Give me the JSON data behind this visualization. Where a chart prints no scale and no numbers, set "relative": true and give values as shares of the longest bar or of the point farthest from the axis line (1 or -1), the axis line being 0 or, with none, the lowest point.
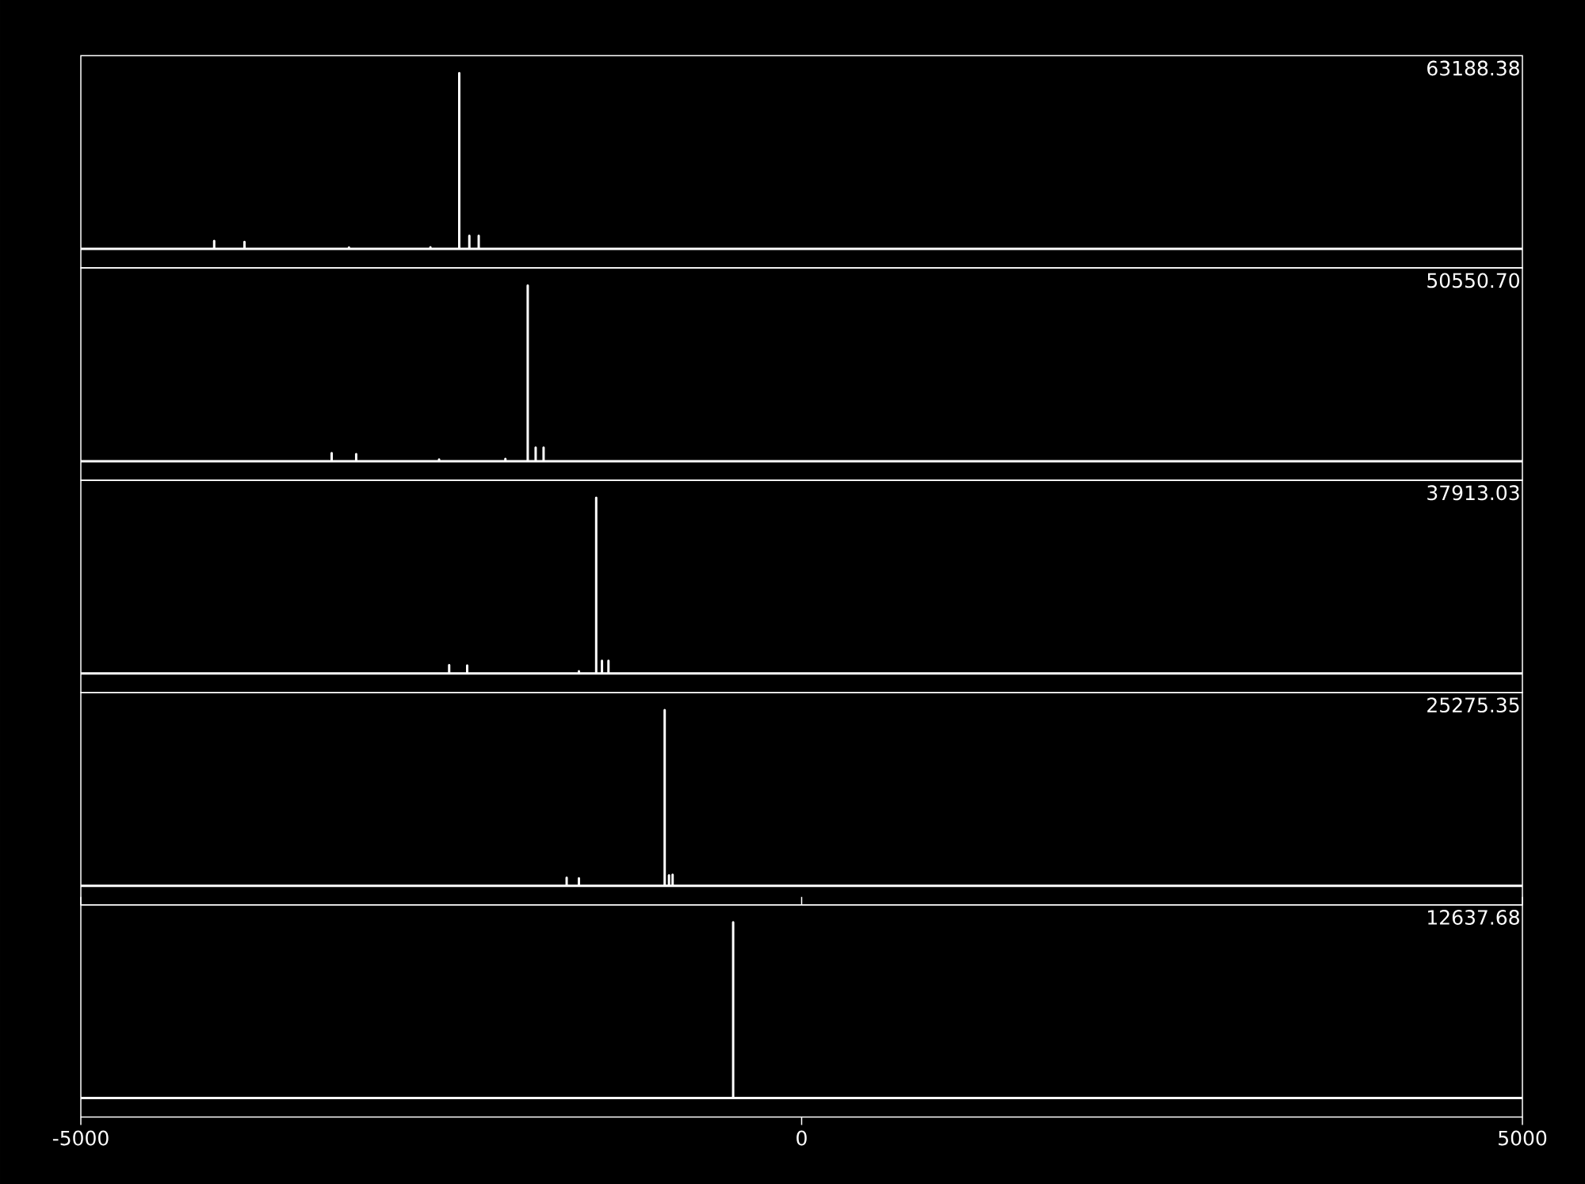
{
  "chart_data": [
    {
      "type": "line",
      "relative": true,
      "xlim": [
        -5000,
        5000
      ],
      "tick_labels": false,
      "annotations": [
        "63188.38"
      ],
      "series": [
        {
          "color": "#ffffff",
          "x": [
            -5000,
            -4075,
            -4075,
            -4075,
            -3865,
            -3865,
            -3865,
            -3140,
            -3140,
            -3140,
            -2575,
            -2575,
            -2575,
            -2375,
            -2375,
            -2375,
            -2305,
            -2305,
            -2305,
            -2240,
            -2240,
            -2240,
            5000
          ],
          "values": [
            0,
            0,
            0.045,
            0,
            0,
            0.04,
            0,
            0,
            0.008,
            0,
            0,
            0.01,
            0,
            0,
            1,
            0,
            0,
            0.075,
            0,
            0,
            0.075,
            0,
            0
          ]
        }
      ]
    },
    {
      "type": "line",
      "relative": true,
      "xlim": [
        -5000,
        5000
      ],
      "tick_labels": false,
      "annotations": [
        "50550.70"
      ],
      "series": [
        {
          "color": "#ffffff",
          "x": [
            -5000,
            -3260,
            -3260,
            -3260,
            -3090,
            -3090,
            -3090,
            -2515,
            -2515,
            -2515,
            -2055,
            -2055,
            -2055,
            -1900,
            -1900,
            -1900,
            -1845,
            -1845,
            -1845,
            -1790,
            -1790,
            -1790,
            5000
          ],
          "values": [
            0,
            0,
            0.046,
            0,
            0,
            0.04,
            0,
            0,
            0.01,
            0,
            0,
            0.013,
            0,
            0,
            1,
            0,
            0,
            0.078,
            0,
            0,
            0.078,
            0,
            0
          ]
        }
      ]
    },
    {
      "type": "line",
      "relative": true,
      "xlim": [
        -5000,
        5000
      ],
      "tick_labels": false,
      "annotations": [
        "37913.03"
      ],
      "series": [
        {
          "color": "#ffffff",
          "x": [
            -5000,
            -2445,
            -2445,
            -2445,
            -2320,
            -2320,
            -2320,
            -1545,
            -1545,
            -1545,
            -1425,
            -1425,
            -1425,
            -1385,
            -1385,
            -1385,
            -1340,
            -1340,
            -1340,
            5000
          ],
          "values": [
            0,
            0,
            0.048,
            0,
            0,
            0.045,
            0,
            0,
            0.013,
            0,
            0,
            1,
            0,
            0,
            0.073,
            0,
            0,
            0.073,
            0,
            0
          ]
        }
      ]
    },
    {
      "type": "line",
      "relative": true,
      "xlim": [
        -5000,
        5000
      ],
      "tick_labels": false,
      "annotations": [
        "25275.35"
      ],
      "series": [
        {
          "color": "#ffffff",
          "x": [
            -5000,
            -1630,
            -1630,
            -1630,
            -1545,
            -1545,
            -1545,
            -950,
            -950,
            -950,
            -920,
            -920,
            -920,
            -895,
            -895,
            -895,
            5000
          ],
          "values": [
            0,
            0,
            0.046,
            0,
            0,
            0.042,
            0,
            0,
            1,
            0,
            0,
            0.06,
            0,
            0,
            0.063,
            0,
            0
          ]
        }
      ]
    },
    {
      "type": "line",
      "relative": true,
      "xlim": [
        -5000,
        5000
      ],
      "xticks": [
        -5000,
        0,
        5000
      ],
      "tick_labels": "x",
      "annotations": [
        "12637.68"
      ],
      "series": [
        {
          "color": "#ffffff",
          "x": [
            -5000,
            -475,
            -475,
            -475,
            5000
          ],
          "values": [
            0,
            0,
            1,
            0,
            0
          ]
        }
      ]
    }
  ]
}
